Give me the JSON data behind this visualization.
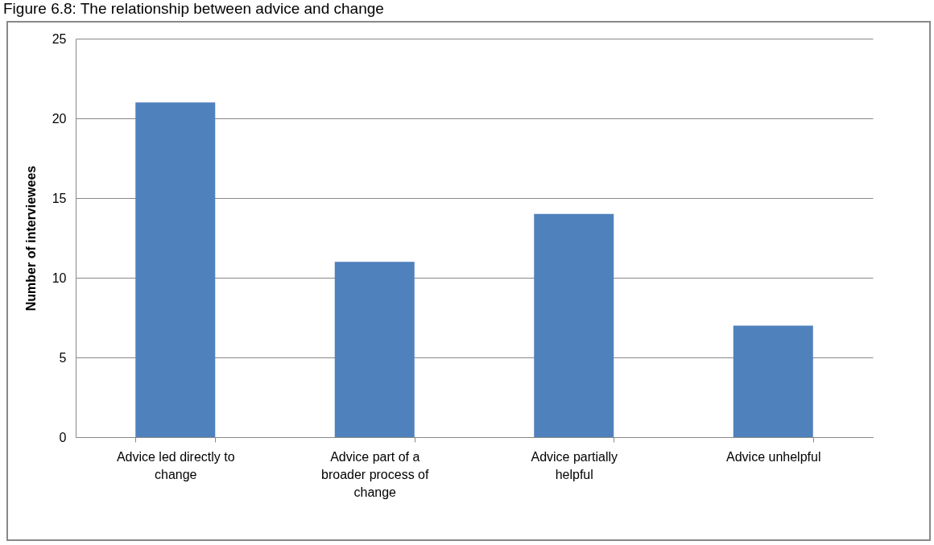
{
  "chart_data": {
    "type": "bar",
    "title": "Figure 6.8: The relationship between advice and change",
    "ylabel": "Number of interviewees",
    "categories": [
      "Advice led directly to change",
      "Advice part of a broader process of change",
      "Advice partially helpful",
      "Advice unhelpful"
    ],
    "values": [
      21,
      11,
      14,
      7
    ],
    "color": "#4f81bd",
    "ylim": [
      0,
      25
    ],
    "yticks": [
      0,
      5,
      10,
      15,
      20,
      25
    ],
    "grid": "y"
  }
}
